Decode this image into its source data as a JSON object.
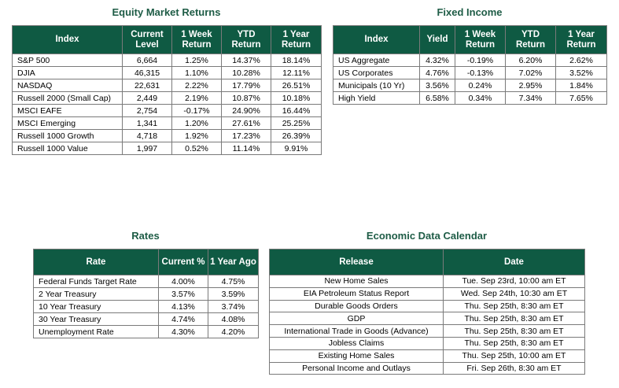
{
  "equity": {
    "title": "Equity Market Returns",
    "headers": [
      "Index",
      "Current Level",
      "1 Week Return",
      "YTD Return",
      "1 Year Return"
    ],
    "rows": [
      [
        "S&P 500",
        "6,664",
        "1.25%",
        "14.37%",
        "18.14%"
      ],
      [
        "DJIA",
        "46,315",
        "1.10%",
        "10.28%",
        "12.11%"
      ],
      [
        "NASDAQ",
        "22,631",
        "2.22%",
        "17.79%",
        "26.51%"
      ],
      [
        "Russell 2000 (Small Cap)",
        "2,449",
        "2.19%",
        "10.87%",
        "10.18%"
      ],
      [
        "MSCI EAFE",
        "2,754",
        "-0.17%",
        "24.90%",
        "16.44%"
      ],
      [
        "MSCI Emerging",
        "1,341",
        "1.20%",
        "27.61%",
        "25.25%"
      ],
      [
        "Russell 1000 Growth",
        "4,718",
        "1.92%",
        "17.23%",
        "26.39%"
      ],
      [
        "Russell 1000 Value",
        "1,997",
        "0.52%",
        "11.14%",
        "9.91%"
      ]
    ]
  },
  "fixed": {
    "title": "Fixed Income",
    "headers": [
      "Index",
      "Yield",
      "1 Week Return",
      "YTD Return",
      "1 Year Return"
    ],
    "rows": [
      [
        "US Aggregate",
        "4.32%",
        "-0.19%",
        "6.20%",
        "2.62%"
      ],
      [
        "US Corporates",
        "4.76%",
        "-0.13%",
        "7.02%",
        "3.52%"
      ],
      [
        "Municipals (10 Yr)",
        "3.56%",
        "0.24%",
        "2.95%",
        "1.84%"
      ],
      [
        "High Yield",
        "6.58%",
        "0.34%",
        "7.34%",
        "7.65%"
      ]
    ]
  },
  "rates": {
    "title": "Rates",
    "headers": [
      "Rate",
      "Current %",
      "1 Year Ago"
    ],
    "rows": [
      [
        "Federal Funds Target Rate",
        "4.00%",
        "4.75%"
      ],
      [
        "2 Year Treasury",
        "3.57%",
        "3.59%"
      ],
      [
        "10 Year Treasury",
        "4.13%",
        "3.74%"
      ],
      [
        "30 Year Treasury",
        "4.74%",
        "4.08%"
      ],
      [
        "Unemployment Rate",
        "4.30%",
        "4.20%"
      ]
    ]
  },
  "calendar": {
    "title": "Economic Data Calendar",
    "headers": [
      "Release",
      "Date"
    ],
    "rows": [
      [
        "New Home Sales",
        "Tue. Sep 23rd, 10:00 am ET"
      ],
      [
        "EIA Petroleum Status Report",
        "Wed. Sep 24th, 10:30 am ET"
      ],
      [
        "Durable Goods Orders",
        "Thu. Sep 25th, 8:30 am ET"
      ],
      [
        "GDP",
        "Thu. Sep 25th, 8:30 am ET"
      ],
      [
        "International Trade in Goods (Advance)",
        "Thu. Sep 25th, 8:30 am ET"
      ],
      [
        "Jobless Claims",
        "Thu. Sep 25th, 8:30 am ET"
      ],
      [
        "Existing Home Sales",
        "Thu. Sep 25th, 10:00 am ET"
      ],
      [
        "Personal Income and Outlays",
        "Fri. Sep 26th, 8:30 am ET"
      ]
    ]
  },
  "colors": {
    "header_bg": "#0f5a43",
    "title_text": "#1e5c46"
  }
}
